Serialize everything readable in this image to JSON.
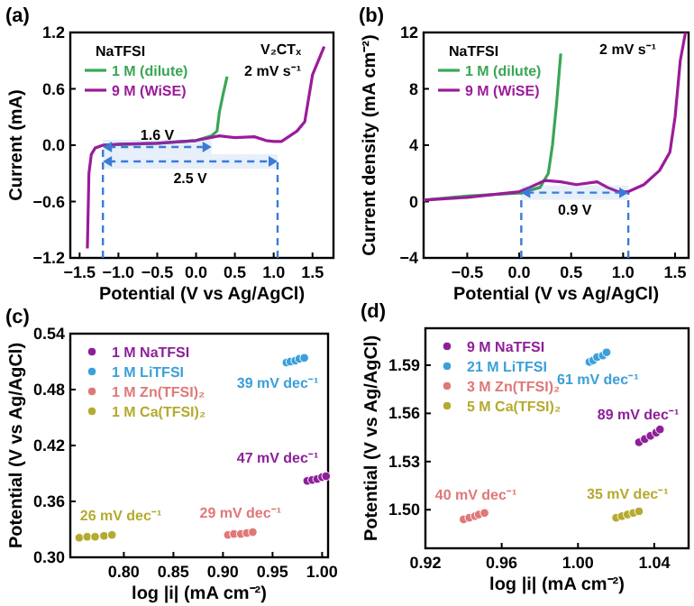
{
  "chart_data": [
    {
      "type": "line",
      "title": "(a)",
      "xlabel": "Potential (V vs Ag/AgCl)",
      "ylabel": "Current (mA)",
      "xlim": [
        -1.62,
        1.77
      ],
      "ylim": [
        -1.2,
        1.2
      ],
      "xticks": [
        {
          "value": -1.5,
          "label": "−1.5"
        },
        {
          "value": -1,
          "label": "−1.0"
        },
        {
          "value": -0.5,
          "label": "−0.5"
        },
        {
          "value": 0,
          "label": "0.0"
        },
        {
          "value": 0.5,
          "label": "0.5"
        },
        {
          "value": 1,
          "label": "1.0"
        },
        {
          "value": 1.5,
          "label": "1.5"
        }
      ],
      "yticks": [
        {
          "value": -1.2,
          "label": "−1.2"
        },
        {
          "value": -0.6,
          "label": "−0.6"
        },
        {
          "value": 0,
          "label": "0.0"
        },
        {
          "value": 0.6,
          "label": "0.6"
        },
        {
          "value": 1.2,
          "label": "1.2"
        }
      ],
      "legend": "top left",
      "legend_title": "NaTFSI",
      "series": [
        {
          "name": "1 M (dilute)",
          "color": "#3aa655",
          "x": [
            -1.2,
            -0.5,
            0,
            0.2,
            0.27,
            0.3,
            0.35,
            0.4
          ],
          "values": [
            0,
            0.02,
            0.05,
            0.1,
            0.15,
            0.35,
            0.55,
            0.73
          ]
        },
        {
          "name": "9 M (WiSE)",
          "color": "#9b1b9b",
          "x": [
            -1.4,
            -1.38,
            -1.35,
            -1.3,
            -1.2,
            -1,
            -0.5,
            0,
            0.3,
            0.5,
            0.75,
            0.9,
            1,
            1.1,
            1.3,
            1.4,
            1.45,
            1.5,
            1.6,
            1.65
          ],
          "values": [
            -1.1,
            -0.3,
            -0.1,
            -0.03,
            0,
            0.01,
            0.02,
            0.05,
            0.1,
            0.08,
            0.09,
            0.05,
            0.04,
            0.04,
            0.15,
            0.25,
            0.5,
            0.75,
            0.95,
            1.05
          ]
        }
      ],
      "ref_lines": [
        {
          "axis": "x",
          "value": -1.2,
          "color": "#3a7bd5",
          "line_style": "dashed"
        },
        {
          "axis": "x",
          "value": 1.05,
          "color": "#3a7bd5",
          "line_style": "dashed"
        }
      ],
      "bands": [
        {
          "axis": "x",
          "from": -1.2,
          "to": 0.2,
          "label": "1.6 V",
          "color": "#3a7bd5"
        },
        {
          "axis": "x",
          "from": -1.2,
          "to": 1.05,
          "label": "2.5 V",
          "color": "#3a7bd5"
        }
      ],
      "annotations": [
        "V₂CTₓ",
        "2 mV s⁻¹"
      ]
    },
    {
      "type": "line",
      "title": "(b)",
      "xlabel": "Potential (V vs Ag/AgCl)",
      "ylabel": "Current density (mA cm⁻²)",
      "xlim": [
        -0.92,
        1.63
      ],
      "ylim": [
        -4,
        12
      ],
      "xticks": [
        {
          "value": -0.5,
          "label": "−0.5"
        },
        {
          "value": 0,
          "label": "0.0"
        },
        {
          "value": 0.5,
          "label": "0.5"
        },
        {
          "value": 1,
          "label": "1.0"
        },
        {
          "value": 1.5,
          "label": "1.5"
        }
      ],
      "yticks": [
        {
          "value": -4,
          "label": "−4"
        },
        0,
        4,
        8,
        12
      ],
      "legend": "top left",
      "legend_title": "NaTFSI",
      "series": [
        {
          "name": "1 M (dilute)",
          "color": "#3aa655",
          "x": [
            -0.92,
            -0.5,
            0,
            0.2,
            0.28,
            0.32,
            0.36,
            0.4
          ],
          "values": [
            0.1,
            0.4,
            0.6,
            1,
            2,
            4,
            7,
            10.5
          ]
        },
        {
          "name": "9 M (WiSE)",
          "color": "#9b1b9b",
          "x": [
            -0.92,
            -0.5,
            0,
            0.1,
            0.25,
            0.4,
            0.55,
            0.75,
            0.85,
            0.95,
            1.05,
            1.2,
            1.35,
            1.45,
            1.5,
            1.55,
            1.6
          ],
          "values": [
            0.1,
            0.3,
            0.7,
            1,
            1.5,
            1.4,
            1.2,
            1.4,
            1,
            0.7,
            0.7,
            1.2,
            2.2,
            3.5,
            6,
            10,
            12
          ]
        }
      ],
      "ref_lines": [
        {
          "axis": "x",
          "value": 0.02,
          "color": "#3a7bd5",
          "line_style": "dashed"
        },
        {
          "axis": "x",
          "value": 1.05,
          "color": "#3a7bd5",
          "line_style": "dashed"
        }
      ],
      "bands": [
        {
          "axis": "x",
          "from": 0.02,
          "to": 1.05,
          "label": "0.9 V",
          "color": "#3a7bd5"
        }
      ],
      "annotations": [
        "2 mV s⁻¹"
      ]
    },
    {
      "type": "scatter",
      "title": "(c)",
      "xlabel": "log |i| (mA cm⁻²)",
      "ylabel": "Potential (V vs Ag/AgCl)",
      "xlim": [
        0.746,
        1.006
      ],
      "ylim": [
        0.3,
        0.54
      ],
      "xticks": [
        {
          "value": 0.8,
          "label": "0.80"
        },
        {
          "value": 0.85,
          "label": "0.85"
        },
        {
          "value": 0.9,
          "label": "0.90"
        },
        {
          "value": 0.95,
          "label": "0.95"
        },
        {
          "value": 1,
          "label": "1.00"
        }
      ],
      "yticks": [
        {
          "value": 0.3,
          "label": "0.30"
        },
        0.36,
        0.42,
        0.48,
        0.54
      ],
      "legend": "top left",
      "marker": "circle",
      "series": [
        {
          "name": "1 M NaTFSI",
          "color": "#8e1f9a",
          "x": [
            0.985,
            0.99,
            0.995,
            1,
            1.004
          ],
          "values": [
            0.382,
            0.383,
            0.384,
            0.386,
            0.387
          ]
        },
        {
          "name": "1 M LiTFSI",
          "color": "#3ba0d8",
          "x": [
            0.964,
            0.968,
            0.973,
            0.977,
            0.982
          ],
          "values": [
            0.509,
            0.51,
            0.511,
            0.513,
            0.514
          ]
        },
        {
          "name": "1 M Zn(TFSI)₂",
          "color": "#e07878",
          "x": [
            0.905,
            0.911,
            0.918,
            0.924,
            0.93
          ],
          "values": [
            0.324,
            0.325,
            0.325,
            0.326,
            0.327
          ]
        },
        {
          "name": "1 M Ca(TFSI)₂",
          "color": "#b5aa30",
          "x": [
            0.755,
            0.763,
            0.771,
            0.78,
            0.788
          ],
          "values": [
            0.321,
            0.322,
            0.322,
            0.323,
            0.324
          ]
        }
      ],
      "annotations": [
        "47 mV dec⁻¹",
        "39 mV dec⁻¹",
        "29 mV dec⁻¹",
        "26 mV dec⁻¹"
      ]
    },
    {
      "type": "scatter",
      "title": "(d)",
      "xlabel": "log |i| (mA cm⁻²)",
      "ylabel": "Potential (V vs Ag/AgCl)",
      "xlim": [
        0.92,
        1.058
      ],
      "ylim": [
        1.476,
        1.613
      ],
      "xticks": [
        {
          "value": 0.92,
          "label": "0.92"
        },
        {
          "value": 0.96,
          "label": "0.96"
        },
        {
          "value": 1,
          "label": "1.00"
        },
        {
          "value": 1.04,
          "label": "1.04"
        }
      ],
      "yticks": [
        {
          "value": 1.5,
          "label": "1.50"
        },
        1.53,
        1.56,
        1.59
      ],
      "legend": "top left",
      "marker": "circle",
      "series": [
        {
          "name": "9 M NaTFSI",
          "color": "#8e1f9a",
          "x": [
            1.032,
            1.035,
            1.038,
            1.041,
            1.043
          ],
          "values": [
            1.542,
            1.544,
            1.546,
            1.548,
            1.55
          ]
        },
        {
          "name": "21 M LiTFSI",
          "color": "#3ba0d8",
          "x": [
            1.006,
            1.008,
            1.01,
            1.013,
            1.015
          ],
          "values": [
            1.592,
            1.593,
            1.595,
            1.596,
            1.598
          ]
        },
        {
          "name": "3 M Zn(TFSI)₂",
          "color": "#e07878",
          "x": [
            0.94,
            0.943,
            0.946,
            0.948,
            0.951
          ],
          "values": [
            1.494,
            1.495,
            1.496,
            1.497,
            1.498
          ]
        },
        {
          "name": "5 M Ca(TFSI)₂",
          "color": "#b5aa30",
          "x": [
            1.02,
            1.023,
            1.026,
            1.029,
            1.032
          ],
          "values": [
            1.495,
            1.496,
            1.497,
            1.498,
            1.499
          ]
        }
      ],
      "annotations": [
        "89 mV dec⁻¹",
        "61 mV dec⁻¹",
        "40 mV dec⁻¹",
        "35 mV dec⁻¹"
      ]
    }
  ]
}
